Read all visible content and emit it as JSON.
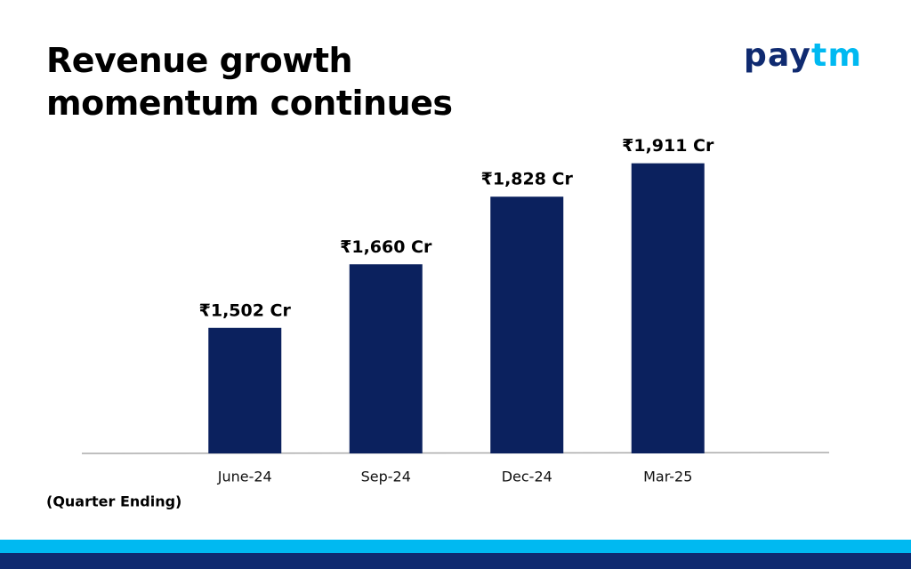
{
  "logo": "paytm",
  "chart_data": {
    "type": "bar",
    "title": "Revenue growth momentum continues",
    "categories": [
      "June-24",
      "Sep-24",
      "Dec-24",
      "Mar-25"
    ],
    "values": [
      1502,
      1660,
      1828,
      1911
    ],
    "value_labels": [
      "₹1,502 Cr",
      "₹1,660 Cr",
      "₹1,828 Cr",
      "₹1,911 Cr"
    ],
    "xlabel": "(Quarter Ending)",
    "color": "#0b215e",
    "ylim": [
      1190,
      1950
    ]
  }
}
